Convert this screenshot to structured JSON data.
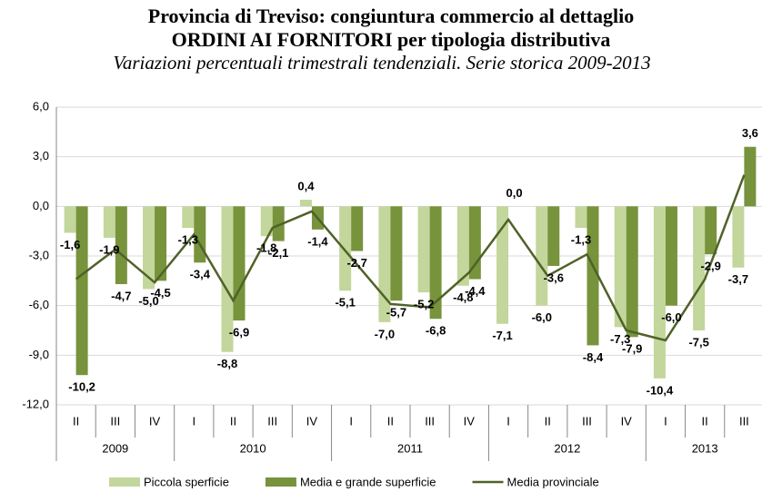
{
  "chart_data": {
    "type": "bar_line",
    "title": "Provincia di Treviso: congiuntura commercio al dettaglio",
    "title2": "ORDINI AI FORNITORI per tipologia distributiva",
    "subtitle": "Variazioni percentuali trimestrali tendenziali. Serie storica 2009-2013",
    "categories": [
      "II",
      "III",
      "IV",
      "I",
      "II",
      "III",
      "IV",
      "I",
      "II",
      "III",
      "IV",
      "I",
      "II",
      "III",
      "IV",
      "I",
      "II",
      "III"
    ],
    "groups": [
      "2009",
      "2010",
      "2011",
      "2012",
      "2013"
    ],
    "series": [
      {
        "name": "Piccola sperficie",
        "kind": "bar",
        "color": "#c3d69b",
        "label_color": "#8aab4f",
        "values": [
          -1.6,
          -1.9,
          -5.0,
          -1.3,
          -8.8,
          -1.8,
          0.4,
          -5.1,
          -7.0,
          -5.2,
          -4.8,
          -7.1,
          -6.0,
          -1.3,
          -7.3,
          -10.4,
          -7.5,
          -3.7
        ],
        "value_labels": [
          "-1,6",
          "-1,9",
          "-5,0",
          "-1,3",
          "-8,8",
          "-1,8",
          "0,4",
          "-5,1",
          "-7,0",
          "-5,2",
          "-4,8",
          "-7,1",
          "-6,0",
          "-1,3",
          "-7,3",
          "-10,4",
          "-7,5",
          "-3,7"
        ]
      },
      {
        "name": "Media e grande superficie",
        "kind": "bar",
        "color": "#77933c",
        "label_color": "#262626",
        "values": [
          -10.2,
          -4.7,
          -4.5,
          -3.4,
          -6.9,
          -2.1,
          -1.4,
          -2.7,
          -5.7,
          -6.8,
          -4.4,
          0.0,
          -3.6,
          -8.4,
          -7.9,
          -6.0,
          -2.9,
          3.6
        ],
        "value_labels": [
          "-10,2",
          "-4,7",
          "-4,5",
          "-3,4",
          "-6,9",
          "-2,1",
          "-1,4",
          "-2,7",
          "-5,7",
          "-6,8",
          "-4,4",
          "0,0",
          "-3,6",
          "-8,4",
          "-7,9",
          "-6,0",
          "-2,9",
          "3,6"
        ]
      },
      {
        "name": "Media provinciale",
        "kind": "line",
        "color": "#4f6228",
        "values": [
          -4.4,
          -2.6,
          -4.6,
          -1.7,
          -5.7,
          -1.3,
          -0.3,
          -3.1,
          -5.9,
          -6.1,
          -4.0,
          -0.8,
          -4.2,
          -2.9,
          -7.5,
          -8.1,
          -4.4,
          1.9
        ]
      }
    ],
    "ylim": [
      -12,
      6
    ],
    "yticks": [
      {
        "value": -12,
        "label": "-12,0"
      },
      {
        "value": -9,
        "label": "-9,0"
      },
      {
        "value": -6,
        "label": "-6,0"
      },
      {
        "value": -3,
        "label": "-3,0"
      },
      {
        "value": 0,
        "label": "0,0"
      },
      {
        "value": 3,
        "label": "3,0"
      },
      {
        "value": 6,
        "label": "6,0"
      }
    ],
    "grid": true,
    "legend": "bottom"
  }
}
